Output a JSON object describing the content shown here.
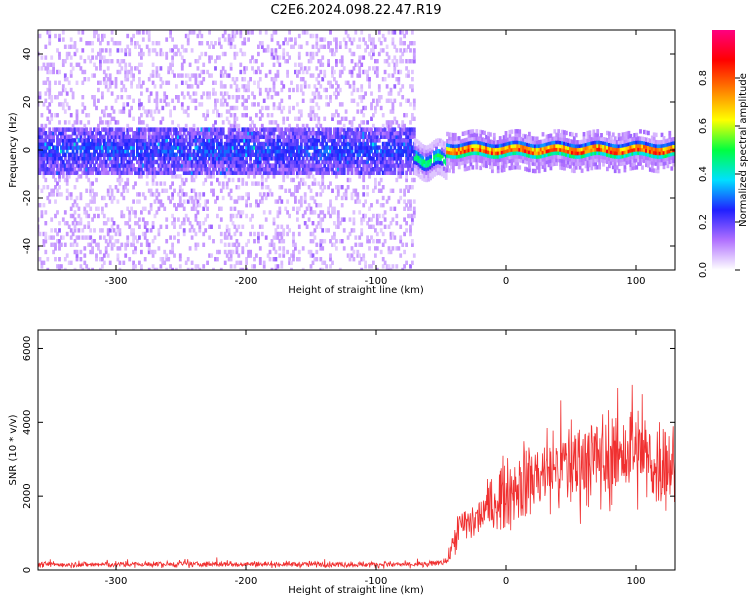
{
  "title": "C2E6.2024.098.22.47.R19",
  "chart_data": [
    {
      "type": "heatmap",
      "title": "C2E6.2024.098.22.47.R19",
      "xlabel": "Height of straight line (km)",
      "ylabel": "Frequency (Hz)",
      "xlim": [
        -360,
        130
      ],
      "ylim": [
        -50,
        50
      ],
      "x_ticks": [
        -300,
        -200,
        -100,
        0,
        100
      ],
      "y_ticks": [
        -40,
        -20,
        0,
        20,
        40
      ],
      "colorbar": {
        "label": "Normalized spectral amplitude",
        "range": [
          0.0,
          1.0
        ],
        "ticks": [
          0.0,
          0.2,
          0.4,
          0.6,
          0.8
        ],
        "colors": [
          "#ffffff",
          "#b070ff",
          "#2020ff",
          "#00e0ff",
          "#00ff40",
          "#ffff00",
          "#ff8000",
          "#ff0000",
          "#ff0080"
        ]
      },
      "regions": [
        {
          "x_range": [
            -360,
            -70
          ],
          "noise_spread_hz": [
            -50,
            50
          ],
          "core_band_hz": [
            -8,
            8
          ],
          "core_amplitude": 0.15
        },
        {
          "x_range": [
            -70,
            -45
          ],
          "center_hz": -4,
          "band_width_hz": 6,
          "peak_amplitude": 0.45
        },
        {
          "x_range": [
            -45,
            130
          ],
          "center_hz": 0,
          "band_width_hz": 6,
          "peak_amplitude": 0.95
        }
      ]
    },
    {
      "type": "line",
      "xlabel": "Height of straight line (km)",
      "ylabel": "SNR (10 * v/v)",
      "xlim": [
        -360,
        130
      ],
      "ylim": [
        0,
        6500
      ],
      "x_ticks": [
        -300,
        -200,
        -100,
        0,
        100
      ],
      "y_ticks": [
        0,
        2000,
        4000,
        6000
      ],
      "color": "#f03030",
      "series": [
        {
          "x": [
            -360,
            -300,
            -200,
            -100,
            -60,
            -45,
            -40,
            -35,
            -25,
            -10,
            0,
            20,
            40,
            60,
            80,
            95,
            110,
            130
          ],
          "values": [
            150,
            150,
            160,
            150,
            150,
            250,
            800,
            1200,
            1300,
            1800,
            2100,
            2500,
            2800,
            3000,
            3000,
            3200,
            2900,
            2900
          ]
        }
      ]
    }
  ]
}
